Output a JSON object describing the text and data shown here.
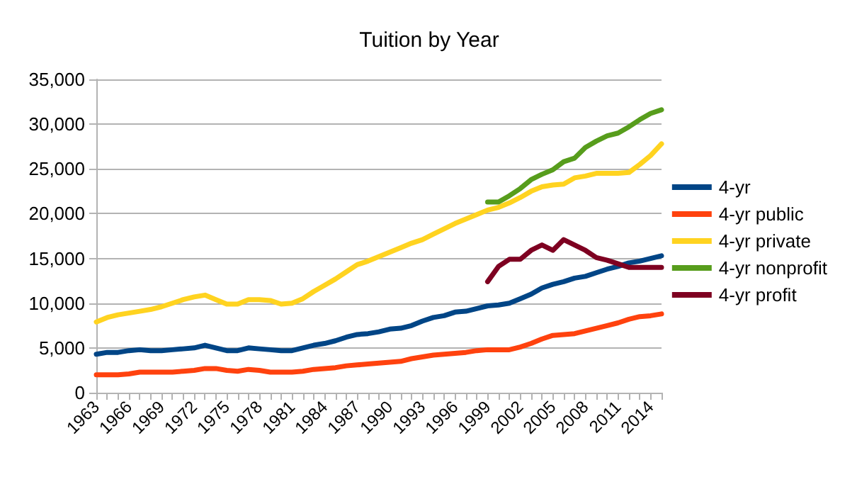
{
  "chart_data": {
    "type": "line",
    "title": "Tuition by Year",
    "categories": [
      "1963",
      null,
      null,
      "1966",
      null,
      null,
      "1969",
      null,
      null,
      "1972",
      null,
      null,
      "1975",
      null,
      null,
      "1978",
      null,
      null,
      "1981",
      null,
      null,
      "1984",
      null,
      null,
      "1987",
      null,
      null,
      "1990",
      null,
      null,
      "1993",
      null,
      null,
      "1996",
      null,
      null,
      "1999",
      null,
      null,
      "2002",
      null,
      null,
      "2005",
      null,
      null,
      "2008",
      null,
      null,
      "2011",
      null,
      null,
      "2014",
      null
    ],
    "series": [
      {
        "name": "4-yr",
        "color": "#004586",
        "values": [
          4300,
          4500,
          4500,
          4700,
          4800,
          4700,
          4700,
          4800,
          4900,
          5000,
          5300,
          5000,
          4700,
          4700,
          5000,
          4900,
          4800,
          4700,
          4700,
          5000,
          5300,
          5500,
          5800,
          6200,
          6500,
          6600,
          6800,
          7100,
          7200,
          7500,
          8000,
          8400,
          8600,
          9000,
          9100,
          9400,
          9700,
          9800,
          10000,
          10500,
          11000,
          11700,
          12100,
          12400,
          12800,
          13000,
          13400,
          13800,
          14100,
          14500,
          14700,
          15000,
          15300
        ]
      },
      {
        "name": "4-yr public",
        "color": "#ff420e",
        "values": [
          2000,
          2000,
          2000,
          2100,
          2300,
          2300,
          2300,
          2300,
          2400,
          2500,
          2700,
          2700,
          2500,
          2400,
          2600,
          2500,
          2300,
          2300,
          2300,
          2400,
          2600,
          2700,
          2800,
          3000,
          3100,
          3200,
          3300,
          3400,
          3500,
          3800,
          4000,
          4200,
          4300,
          4400,
          4500,
          4700,
          4800,
          4800,
          4800,
          5100,
          5500,
          6000,
          6400,
          6500,
          6600,
          6900,
          7200,
          7500,
          7800,
          8200,
          8500,
          8600,
          8800
        ]
      },
      {
        "name": "4-yr private",
        "color": "#ffd320",
        "values": [
          7900,
          8400,
          8700,
          8900,
          9100,
          9300,
          9600,
          10000,
          10400,
          10700,
          10900,
          10400,
          9900,
          9900,
          10400,
          10400,
          10300,
          9900,
          10000,
          10500,
          11300,
          12000,
          12700,
          13500,
          14300,
          14700,
          15200,
          15700,
          16200,
          16700,
          17100,
          17700,
          18300,
          18900,
          19400,
          19900,
          20400,
          20700,
          21200,
          21800,
          22500,
          23000,
          23200,
          23300,
          24000,
          24200,
          24500,
          24500,
          24500,
          24600,
          25500,
          26500,
          27800
        ]
      },
      {
        "name": "4-yr nonprofit",
        "color": "#579d1c",
        "values": [
          null,
          null,
          null,
          null,
          null,
          null,
          null,
          null,
          null,
          null,
          null,
          null,
          null,
          null,
          null,
          null,
          null,
          null,
          null,
          null,
          null,
          null,
          null,
          null,
          null,
          null,
          null,
          null,
          null,
          null,
          null,
          null,
          null,
          null,
          null,
          null,
          21300,
          21300,
          22000,
          22800,
          23800,
          24400,
          24900,
          25800,
          26200,
          27400,
          28100,
          28700,
          29000,
          29700,
          30500,
          31200,
          31600
        ]
      },
      {
        "name": "4-yr profit",
        "color": "#7e0021",
        "values": [
          null,
          null,
          null,
          null,
          null,
          null,
          null,
          null,
          null,
          null,
          null,
          null,
          null,
          null,
          null,
          null,
          null,
          null,
          null,
          null,
          null,
          null,
          null,
          null,
          null,
          null,
          null,
          null,
          null,
          null,
          null,
          null,
          null,
          null,
          null,
          null,
          12400,
          14100,
          14900,
          14900,
          15900,
          16500,
          15900,
          17100,
          16500,
          15900,
          15100,
          14800,
          14400,
          14000,
          14000,
          14000,
          14000
        ]
      }
    ],
    "ylim": [
      0,
      35000
    ],
    "yticks": [
      0,
      {
        "value": 5000,
        "label": "5,000"
      },
      {
        "value": 10000,
        "label": "10,000"
      },
      {
        "value": 15000,
        "label": "15,000"
      },
      {
        "value": 20000,
        "label": "20,000"
      },
      {
        "value": 25000,
        "label": "25,000"
      },
      {
        "value": 30000,
        "label": "30,000"
      },
      {
        "value": 35000,
        "label": "35,000"
      }
    ],
    "grid": "y",
    "legend": "right",
    "marker": "none",
    "line_style": "solid"
  }
}
